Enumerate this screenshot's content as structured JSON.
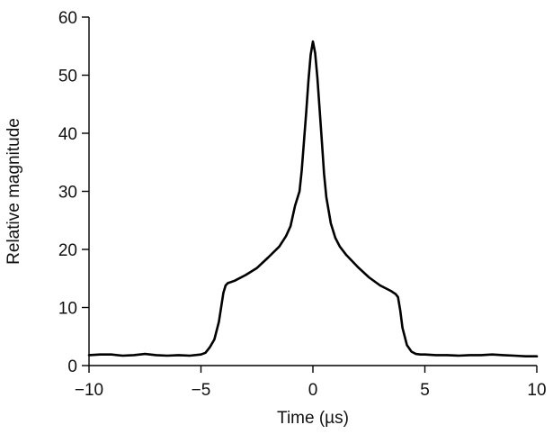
{
  "chart_data": {
    "type": "line",
    "xlabel": "Time (µs)",
    "ylabel": "Relative magnitude",
    "xlim": [
      -10,
      10
    ],
    "ylim": [
      0,
      60
    ],
    "xticks": [
      -10,
      -5,
      0,
      5,
      10
    ],
    "xtick_labels": [
      "−10",
      "−5",
      "0",
      "5",
      "10"
    ],
    "yticks": [
      0,
      10,
      20,
      30,
      40,
      50,
      60
    ],
    "ytick_labels": [
      "0",
      "10",
      "20",
      "30",
      "40",
      "50",
      "60"
    ],
    "grid": false,
    "series": [
      {
        "color": "#000000",
        "x": [
          -10,
          -9.5,
          -9,
          -8.5,
          -8,
          -7.5,
          -7,
          -6.5,
          -6,
          -5.5,
          -5,
          -4.8,
          -4.6,
          -4.4,
          -4.2,
          -4.0,
          -3.9,
          -3.8,
          -3.5,
          -3.0,
          -2.5,
          -2.0,
          -1.5,
          -1.2,
          -1.0,
          -0.8,
          -0.6,
          -0.5,
          -0.4,
          -0.3,
          -0.2,
          -0.1,
          0,
          0.1,
          0.2,
          0.3,
          0.4,
          0.5,
          0.6,
          0.8,
          1.0,
          1.2,
          1.5,
          2.0,
          2.5,
          3.0,
          3.5,
          3.7,
          3.8,
          3.9,
          4.0,
          4.2,
          4.4,
          4.6,
          4.8,
          5.0,
          5.5,
          6,
          6.5,
          7,
          7.5,
          8,
          8.5,
          9,
          9.5,
          10
        ],
        "y": [
          1.8,
          1.9,
          1.9,
          1.7,
          1.8,
          2.0,
          1.8,
          1.7,
          1.8,
          1.7,
          1.9,
          2.2,
          3.2,
          4.5,
          7.5,
          12.5,
          13.8,
          14.2,
          14.6,
          15.6,
          16.8,
          18.6,
          20.5,
          22.3,
          24.0,
          27.5,
          30.0,
          33.5,
          38.5,
          43.5,
          49.0,
          53.5,
          55.8,
          53.8,
          49.5,
          44.0,
          38.5,
          33.0,
          29.0,
          24.5,
          22.0,
          20.5,
          19.0,
          17.0,
          15.2,
          13.8,
          12.8,
          12.3,
          11.8,
          9.5,
          6.5,
          3.5,
          2.4,
          2.0,
          1.9,
          1.9,
          1.8,
          1.8,
          1.7,
          1.8,
          1.8,
          1.9,
          1.8,
          1.7,
          1.6,
          1.6
        ]
      }
    ]
  }
}
